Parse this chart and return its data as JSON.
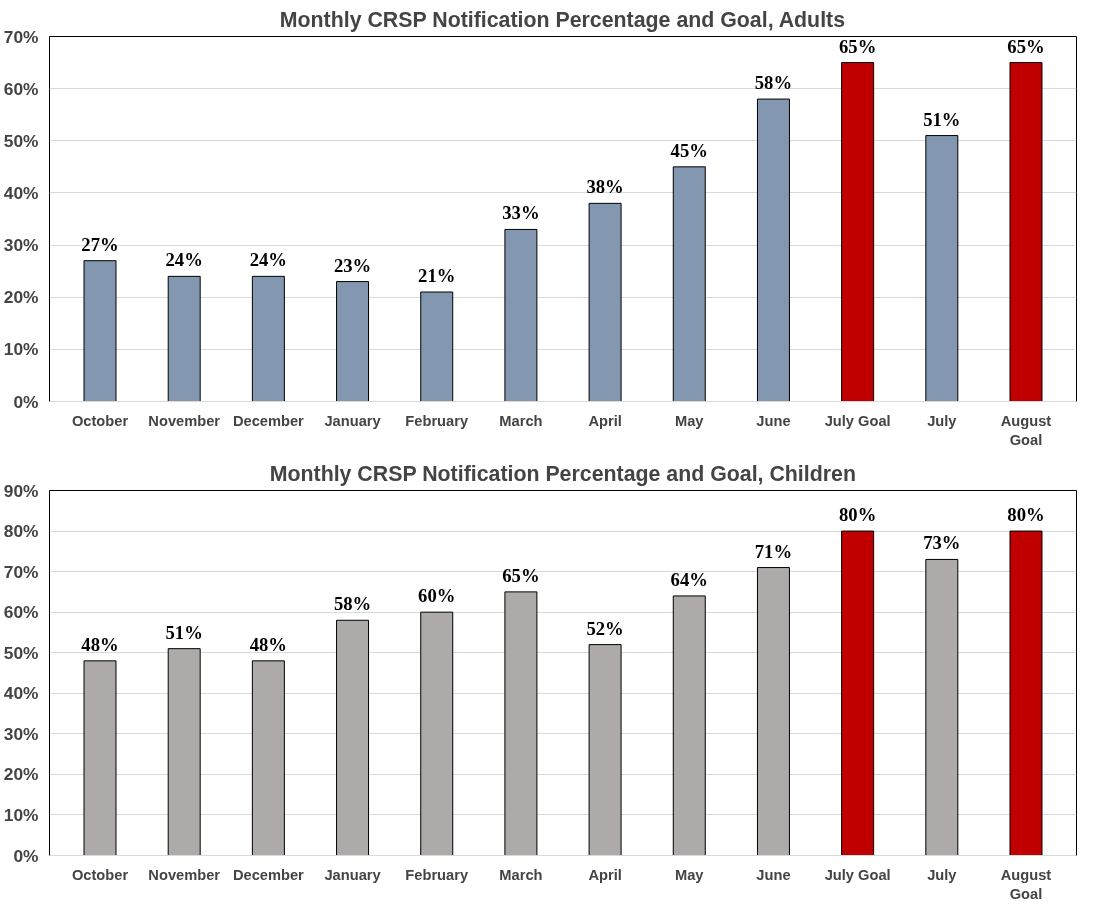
{
  "chart_data": [
    {
      "type": "bar",
      "title": "Monthly CRSP Notification Percentage and Goal, Adults",
      "categories": [
        "October",
        "November",
        "December",
        "January",
        "February",
        "March",
        "April",
        "May",
        "June",
        "July Goal",
        "July",
        "August Goal"
      ],
      "values": [
        27,
        24,
        24,
        23,
        21,
        33,
        38,
        45,
        58,
        65,
        51,
        65
      ],
      "colors": [
        "#8497b0",
        "#8497b0",
        "#8497b0",
        "#8497b0",
        "#8497b0",
        "#8497b0",
        "#8497b0",
        "#8497b0",
        "#8497b0",
        "#c00000",
        "#8497b0",
        "#c00000"
      ],
      "value_labels": [
        "27%",
        "24%",
        "24%",
        "23%",
        "21%",
        "33%",
        "38%",
        "45%",
        "58%",
        "65%",
        "51%",
        "65%"
      ],
      "ylim": [
        0,
        70
      ],
      "yticks": [
        {
          "value": 0,
          "label": "0%"
        },
        {
          "value": 10,
          "label": "10%"
        },
        {
          "value": 20,
          "label": "20%"
        },
        {
          "value": 30,
          "label": "30%"
        },
        {
          "value": 40,
          "label": "40%"
        },
        {
          "value": 50,
          "label": "50%"
        },
        {
          "value": 60,
          "label": "60%"
        },
        {
          "value": 70,
          "label": "70%"
        }
      ],
      "grid": "y"
    },
    {
      "type": "bar",
      "title": "Monthly CRSP Notification Percentage and Goal, Children",
      "categories": [
        "October",
        "November",
        "December",
        "January",
        "February",
        "March",
        "April",
        "May",
        "June",
        "July Goal",
        "July",
        "August Goal"
      ],
      "values": [
        48,
        51,
        48,
        58,
        60,
        65,
        52,
        64,
        71,
        80,
        73,
        80
      ],
      "colors": [
        "#aeaaaa",
        "#aeaaaa",
        "#aeaaaa",
        "#aeaaaa",
        "#aeaaaa",
        "#aeaaaa",
        "#aeaaaa",
        "#aeaaaa",
        "#aeaaaa",
        "#c00000",
        "#aeaaaa",
        "#c00000"
      ],
      "value_labels": [
        "48%",
        "51%",
        "48%",
        "58%",
        "60%",
        "65%",
        "52%",
        "64%",
        "71%",
        "80%",
        "73%",
        "80%"
      ],
      "ylim": [
        0,
        90
      ],
      "yticks": [
        {
          "value": 0,
          "label": "0%"
        },
        {
          "value": 10,
          "label": "10%"
        },
        {
          "value": 20,
          "label": "20%"
        },
        {
          "value": 30,
          "label": "30%"
        },
        {
          "value": 40,
          "label": "40%"
        },
        {
          "value": 50,
          "label": "50%"
        },
        {
          "value": 60,
          "label": "60%"
        },
        {
          "value": 70,
          "label": "70%"
        },
        {
          "value": 80,
          "label": "80%"
        },
        {
          "value": 90,
          "label": "90%"
        }
      ],
      "grid": "y"
    }
  ]
}
